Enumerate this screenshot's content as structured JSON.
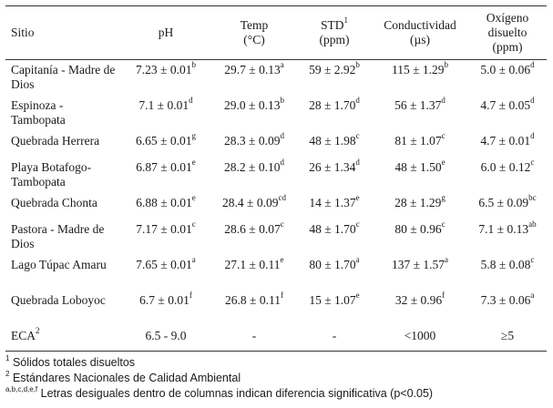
{
  "table": {
    "headers": {
      "site": "Sitio",
      "ph": "pH",
      "temp_line1": "Temp",
      "temp_line2": "(°C)",
      "std_line1": "STD",
      "std_sup": "1",
      "std_line2": "(ppm)",
      "cond_line1": "Conductividad",
      "cond_line2": "(µs)",
      "oxy_line1": "Oxígeno",
      "oxy_line2": "disuelto",
      "oxy_line3": "(ppm)"
    },
    "rows": [
      {
        "site": "Capitanía - Madre de Dios",
        "ph": "7.23 ± 0.01",
        "ph_sup": "b",
        "temp": "29.7 ± 0.13",
        "temp_sup": "a",
        "std": "59 ± 2.92",
        "std_sup": "b",
        "cond": "115 ± 1.29",
        "cond_sup": "b",
        "oxy": "5.0 ± 0.06",
        "oxy_sup": "d"
      },
      {
        "site": "Espinoza - Tambopata",
        "ph": "7.1 ± 0.01",
        "ph_sup": "d",
        "temp": "29.0 ± 0.13",
        "temp_sup": "b",
        "std": "28 ± 1.70",
        "std_sup": "d",
        "cond": "56 ± 1.37",
        "cond_sup": "d",
        "oxy": "4.7 ± 0.05",
        "oxy_sup": "d"
      },
      {
        "site": "Quebrada Herrera",
        "ph": "6.65 ± 0.01",
        "ph_sup": "g",
        "temp": "28.3 ± 0.09",
        "temp_sup": "d",
        "std": "48 ± 1.98",
        "std_sup": "c",
        "cond": "81 ± 1.07",
        "cond_sup": "c",
        "oxy": "4.7 ± 0.01",
        "oxy_sup": "d"
      },
      {
        "site": "Playa Botafogo-Tambopata",
        "ph": "6.87 ± 0.01",
        "ph_sup": "e",
        "temp": "28.2 ± 0.10",
        "temp_sup": "d",
        "std": "26 ± 1.34",
        "std_sup": "d",
        "cond": "48 ± 1.50",
        "cond_sup": "e",
        "oxy": "6.0 ± 0.12",
        "oxy_sup": "c"
      },
      {
        "site": "Quebrada Chonta",
        "ph": "6.88 ± 0.01",
        "ph_sup": "e",
        "temp": "28.4 ± 0.09",
        "temp_sup": "cd",
        "std": "14 ± 1.37",
        "std_sup": "e",
        "cond": "28 ± 1.29",
        "cond_sup": "g",
        "oxy": "6.5 ± 0.09",
        "oxy_sup": "bc"
      },
      {
        "site": "Pastora - Madre de Dios",
        "ph": "7.17 ± 0.01",
        "ph_sup": "c",
        "temp": "28.6 ± 0.07",
        "temp_sup": "c",
        "std": "48 ± 1.70",
        "std_sup": "c",
        "cond": "80 ± 0.96",
        "cond_sup": "c",
        "oxy": "7.1 ± 0.13",
        "oxy_sup": "ab"
      },
      {
        "site": "Lago Túpac Amaru",
        "ph": "7.65 ± 0.01",
        "ph_sup": "a",
        "temp": "27.1 ± 0.11",
        "temp_sup": "e",
        "std": "80 ± 1.70",
        "std_sup": "a",
        "cond": "137 ± 1.57",
        "cond_sup": "a",
        "oxy": "5.8 ± 0.08",
        "oxy_sup": "c"
      },
      {
        "site": "Quebrada Loboyoc",
        "ph": "6.7 ± 0.01",
        "ph_sup": "f",
        "temp": "26.8 ± 0.11",
        "temp_sup": "f",
        "std": "15 ± 1.07",
        "std_sup": "e",
        "cond": "32 ± 0.96",
        "cond_sup": "f",
        "oxy": "7.3 ± 0.06",
        "oxy_sup": "a"
      }
    ],
    "eca_row": {
      "site": "ECA",
      "site_sup": "2",
      "ph": "6.5 - 9.0",
      "temp": "-",
      "std": "-",
      "cond": "<1000",
      "oxy": "≥5"
    }
  },
  "notes": [
    {
      "sup": "1",
      "text": "Sólidos totales disueltos"
    },
    {
      "sup": "2",
      "text": "Estándares Nacionales de Calidad Ambiental"
    },
    {
      "sup": "a,b,c,d,e,f",
      "text": "Letras desiguales dentro de columnas indican diferencia significativa (p<0.05)"
    }
  ]
}
